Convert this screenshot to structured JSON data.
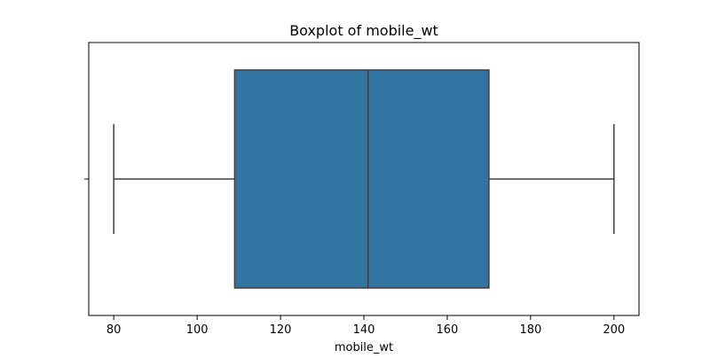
{
  "chart_data": {
    "type": "box",
    "title": "Boxplot of mobile_wt",
    "xlabel": "mobile_wt",
    "ylabel": "",
    "xlim": [
      74.0,
      206.0
    ],
    "xticks": [
      80,
      100,
      120,
      140,
      160,
      180,
      200
    ],
    "xtick_labels": [
      "80",
      "100",
      "120",
      "140",
      "160",
      "180",
      "200"
    ],
    "box": {
      "whisker_low": 80,
      "q1": 109,
      "median": 141,
      "q3": 170,
      "whisker_high": 200
    },
    "orientation": "horizontal",
    "grid": false,
    "colors": {
      "box_fill": "#3274a1",
      "line": "#3f3f3f",
      "axes": "#000000"
    }
  }
}
